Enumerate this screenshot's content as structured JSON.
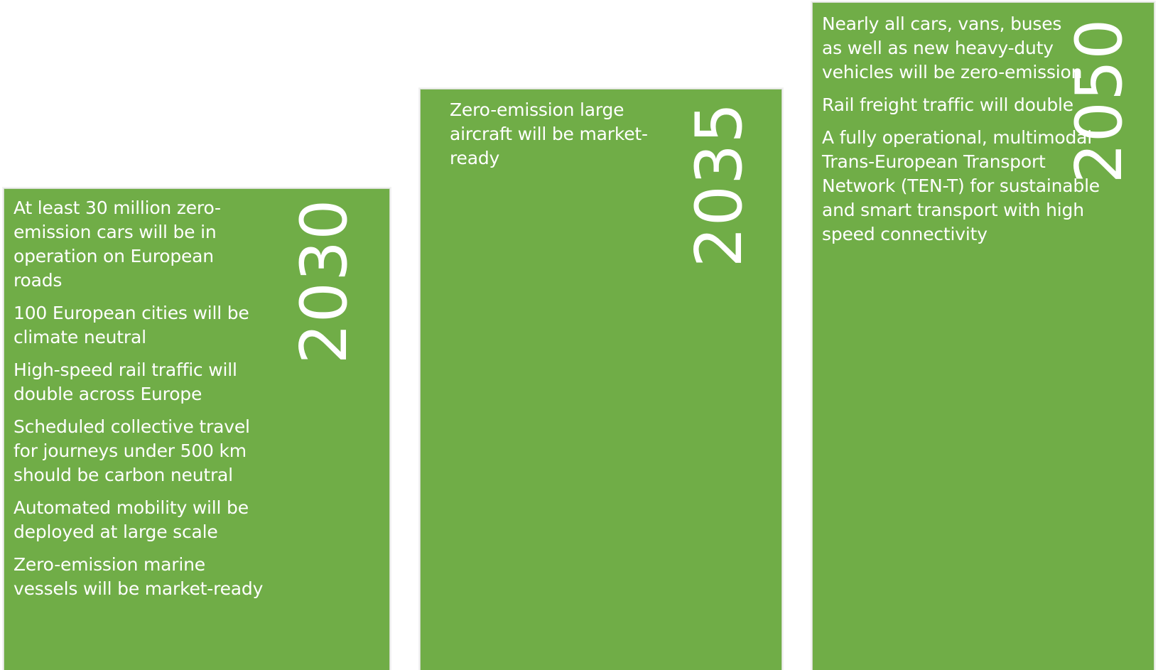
{
  "columns": [
    {
      "year": "2030",
      "items": [
        "At least 30 million zero-emission cars will be in operation on European roads",
        "100 European cities will be climate neutral",
        "High-speed rail traffic will double across Europe",
        "Scheduled collective travel for journeys under 500 km should be carbon neutral",
        "Automated mobility will be deployed at large scale",
        "Zero-emission marine vessels will be market-ready"
      ]
    },
    {
      "year": "2035",
      "items": [
        "Zero-emission large aircraft will be market-ready"
      ]
    },
    {
      "year": "2050",
      "items": [
        "Nearly all cars, vans, buses as well as new heavy-duty vehicles will be zero-emission",
        "Rail freight traffic will double",
        "A fully operational, multimodal Trans-European Transport Network (TEN-T) for sustainable and smart transport with high speed connectivity"
      ]
    }
  ],
  "colors": {
    "box_fill": "#70ad47",
    "text": "#ffffff"
  }
}
